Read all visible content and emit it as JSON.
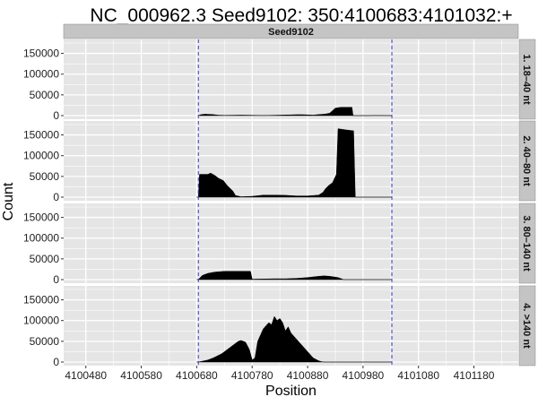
{
  "chart_data": {
    "type": "area",
    "title": "NC_000962.3 Seed9102: 350:4100683:4101032:+",
    "strip_label": "Seed9102",
    "xlabel": "Position",
    "ylabel": "Count",
    "xlim": [
      4100440,
      4101260
    ],
    "ylim": [
      0,
      175000
    ],
    "x_ticks": [
      4100480,
      4100580,
      4100680,
      4100780,
      4100880,
      4100980,
      4101080,
      4101180
    ],
    "y_ticks": [
      0,
      50000,
      100000,
      150000
    ],
    "vlines": [
      4100683,
      4101032
    ],
    "colors": {
      "fill": "#000000",
      "panel_bg": "#e5e5e5",
      "grid": "#ffffff",
      "strip_bg": "#c4c4c4",
      "vline": "#3a3ad6"
    },
    "series": [
      {
        "name": "1. 18–40 nt",
        "x": [
          4100683,
          4100688,
          4100695,
          4100700,
          4100708,
          4100718,
          4100730,
          4100740,
          4100760,
          4100780,
          4100800,
          4100830,
          4100850,
          4100860,
          4100870,
          4100880,
          4100890,
          4100900,
          4100910,
          4100915,
          4100920,
          4100925,
          4100930,
          4100940,
          4100950,
          4100960,
          4100962,
          4100970,
          4100990,
          4101000,
          4101032
        ],
        "y": [
          0,
          2500,
          3500,
          3200,
          2800,
          1200,
          600,
          800,
          1200,
          800,
          300,
          1200,
          1800,
          2300,
          2300,
          1800,
          1200,
          2500,
          3500,
          4500,
          6000,
          12000,
          18000,
          20000,
          20000,
          20000,
          0,
          0,
          0,
          300,
          0
        ]
      },
      {
        "name": "2. 40–80 nt",
        "x": [
          4100680,
          4100683,
          4100685,
          4100700,
          4100705,
          4100712,
          4100720,
          4100728,
          4100735,
          4100745,
          4100750,
          4100760,
          4100780,
          4100800,
          4100820,
          4100840,
          4100860,
          4100880,
          4100900,
          4100908,
          4100912,
          4100918,
          4100925,
          4100932,
          4100935,
          4100950,
          4100963,
          4100966,
          4101032
        ],
        "y": [
          0,
          0,
          55000,
          55000,
          58000,
          53000,
          45000,
          40000,
          28000,
          15000,
          4000,
          1000,
          2000,
          5000,
          5000,
          4500,
          3000,
          3000,
          5000,
          12000,
          20000,
          28000,
          35000,
          55000,
          165000,
          162000,
          160000,
          0,
          0
        ]
      },
      {
        "name": "3. 80–140 nt",
        "x": [
          4100680,
          4100683,
          4100690,
          4100700,
          4100712,
          4100730,
          4100740,
          4100750,
          4100770,
          4100777,
          4100780,
          4100800,
          4100820,
          4100840,
          4100860,
          4100880,
          4100900,
          4100910,
          4100920,
          4100935,
          4100945,
          4101032
        ],
        "y": [
          0,
          0,
          10000,
          15000,
          18000,
          20000,
          20000,
          20000,
          20000,
          20000,
          1000,
          1500,
          2000,
          2000,
          3000,
          5000,
          8000,
          9000,
          8000,
          5000,
          0,
          0
        ]
      },
      {
        "name": "4. >140 nt",
        "x": [
          4100680,
          4100683,
          4100690,
          4100700,
          4100710,
          4100725,
          4100740,
          4100755,
          4100760,
          4100768,
          4100775,
          4100780,
          4100785,
          4100790,
          4100800,
          4100810,
          4100815,
          4100820,
          4100825,
          4100830,
          4100835,
          4100840,
          4100845,
          4100850,
          4100860,
          4100870,
          4100880,
          4100890,
          4100900,
          4100905,
          4100910,
          4101032
        ],
        "y": [
          0,
          0,
          2000,
          5000,
          10000,
          20000,
          35000,
          50000,
          52000,
          48000,
          30000,
          5000,
          10000,
          50000,
          80000,
          95000,
          90000,
          110000,
          100000,
          105000,
          95000,
          75000,
          85000,
          70000,
          55000,
          40000,
          25000,
          10000,
          3000,
          1000,
          0,
          0
        ]
      }
    ]
  }
}
